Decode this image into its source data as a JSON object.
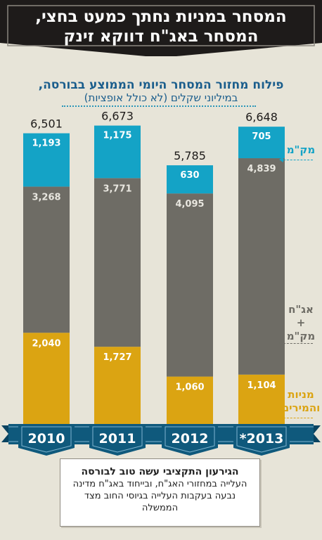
{
  "header": {
    "title_line1": "המסחר במניות נחתך כמעט בחצי,",
    "title_line2": "המסחר באג\"ח דווקא זינק"
  },
  "subtitle": {
    "line1": "פילוח מחזור המסחר היומי הממוצע בבורסה,",
    "line2": "במיליוני שקלים (לא כולל אופציות)"
  },
  "legend": {
    "makam": "מק\"מ",
    "bonds_line1": "אג\"ח",
    "bonds_line2": "+",
    "bonds_line3": "מק\"מ",
    "stocks_line1": "מניות",
    "stocks_line2": "והמירים"
  },
  "note": {
    "title": "הגירעון התקציבי עשה טוב לבורסה",
    "body": "העלייה במחזורי האג\"ח, ובייחוד באג\"ח מדינה נבעה בעקבות העלייה בגיוסי החוב מצד הממשלה"
  },
  "colors": {
    "banner": "#1e1b1a",
    "makam": "#14a3c6",
    "bonds": "#6e6c65",
    "stocks": "#dba412",
    "ribbon": "#0f597c",
    "subtitle": "#1a5d8c",
    "background": "#e7e4d8"
  },
  "chart_data": {
    "type": "bar",
    "stacked": true,
    "categories": [
      "2010",
      "2011",
      "2012",
      "*2013"
    ],
    "totals": [
      "6,501",
      "6,673",
      "5,785",
      "6,648"
    ],
    "series": [
      {
        "name": "מניות והמירים",
        "values": [
          2040,
          1727,
          1060,
          1104
        ],
        "labels": [
          "2,040",
          "1,727",
          "1,060",
          "1,104"
        ],
        "color": "#dba412"
      },
      {
        "name": "אג\"ח + מק\"מ",
        "values": [
          3268,
          3771,
          4095,
          4839
        ],
        "labels": [
          "3,268",
          "3,771",
          "4,095",
          "4,839"
        ],
        "color": "#6e6c65"
      },
      {
        "name": "מק\"מ",
        "values": [
          1193,
          1175,
          630,
          705
        ],
        "labels": [
          "1,193",
          "1,175",
          "630",
          "705"
        ],
        "color": "#14a3c6"
      }
    ],
    "title": "פילוח מחזור המסחר היומי הממוצע בבורסה,",
    "subtitle": "במיליוני שקלים (לא כולל אופציות)",
    "grid": false,
    "legend": "right"
  }
}
